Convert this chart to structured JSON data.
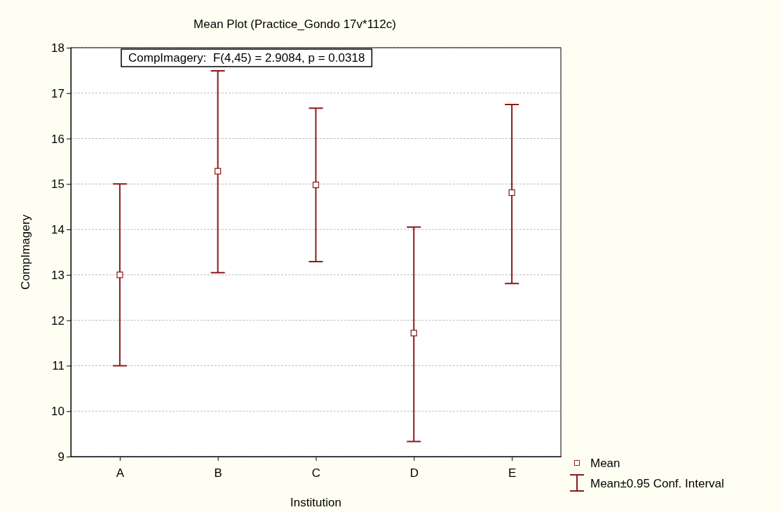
{
  "chart_data": {
    "type": "scatter",
    "title": "Mean Plot (Practice_Gondo 17v*112c)",
    "xlabel": "Institution",
    "ylabel": "CompImagery",
    "categories": [
      "A",
      "B",
      "C",
      "D",
      "E"
    ],
    "series": [
      {
        "name": "Mean",
        "color": "#8b1a1a",
        "values": [
          13,
          15.28,
          14.98,
          11.72,
          14.81
        ],
        "errors": [
          [
            11,
            15
          ],
          [
            13.05,
            17.49
          ],
          [
            13.29,
            16.67
          ],
          [
            9.33,
            14.05
          ],
          [
            12.81,
            16.75
          ]
        ]
      }
    ],
    "ylim": [
      9,
      18
    ],
    "yticks": [
      9,
      10,
      11,
      12,
      13,
      14,
      15,
      16,
      17,
      18
    ],
    "grid": "y",
    "marker": "square",
    "legend": "bottom right",
    "annotations": [
      "CompImagery:  F(4,45) = 2.9084, p = 0.0318",
      "Mean±0.95 Conf. Interval"
    ]
  }
}
